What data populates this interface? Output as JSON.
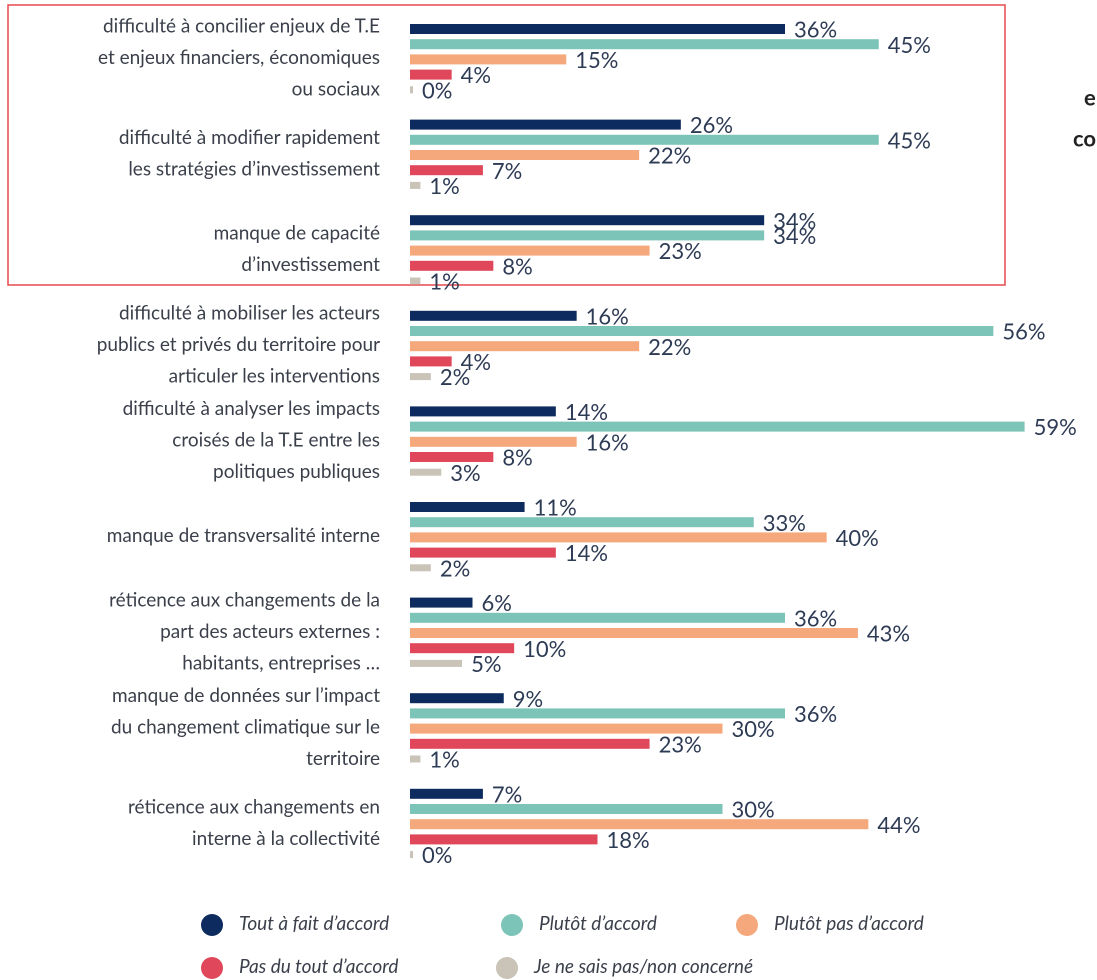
{
  "chart_data": {
    "type": "hbar",
    "categories": [
      [
        "difficulté à concilier enjeux de T.E",
        "et enjeux financiers, économiques",
        "ou sociaux"
      ],
      [
        "difficulté à modifier rapidement",
        "les stratégies d’investissement"
      ],
      [
        "manque de capacité",
        "d’investissement"
      ],
      [
        "difficulté à mobiliser les acteurs",
        "publics et privés du territoire pour",
        "articuler les interventions"
      ],
      [
        "difficulté à analyser les impacts",
        "croisés de la T.E entre les",
        "politiques publiques"
      ],
      [
        "manque de transversalité interne"
      ],
      [
        "réticence aux changements de la",
        "part des acteurs externes :",
        "habitants, entreprises …"
      ],
      [
        "manque de données sur l’impact",
        "du changement climatique sur le",
        "territoire"
      ],
      [
        "réticence aux changements en",
        "interne à la collectivité"
      ]
    ],
    "series": [
      {
        "name": "Tout à fait d’accord",
        "color": "#0d2b5e",
        "values": [
          36,
          26,
          34,
          16,
          14,
          11,
          6,
          9,
          7
        ],
        "value_labels": [
          "36%",
          "26%",
          "34%",
          "16%",
          "14%",
          "11%",
          "6%",
          "9%",
          "7%"
        ]
      },
      {
        "name": "Plutôt d’accord",
        "color": "#7cc4b7",
        "values": [
          45,
          45,
          34,
          56,
          59,
          33,
          36,
          36,
          30
        ],
        "value_labels": [
          "45%",
          "45%",
          "34%",
          "56%",
          "59%",
          "33%",
          "36%",
          "36%",
          "30%"
        ]
      },
      {
        "name": "Plutôt pas d’accord",
        "color": "#f5a87b",
        "values": [
          15,
          22,
          23,
          22,
          16,
          40,
          43,
          30,
          44
        ],
        "value_labels": [
          "15%",
          "22%",
          "23%",
          "22%",
          "16%",
          "40%",
          "43%",
          "30%",
          "44%"
        ]
      },
      {
        "name": "Pas du tout d’accord",
        "color": "#e0475a",
        "values": [
          4,
          7,
          8,
          4,
          8,
          14,
          10,
          23,
          18
        ],
        "value_labels": [
          "4%",
          "7%",
          "8%",
          "4%",
          "8%",
          "14%",
          "10%",
          "23%",
          "18%"
        ]
      },
      {
        "name": "Je ne sais pas/non concerné",
        "color": "#c9c3b8",
        "values": [
          0,
          1,
          1,
          2,
          3,
          2,
          5,
          1,
          0
        ],
        "value_labels": [
          "0%",
          "1%",
          "1%",
          "2%",
          "3%",
          "2%",
          "5%",
          "1%",
          "0%"
        ]
      }
    ],
    "xlim": [
      0,
      60
    ],
    "annotations": [
      "e",
      "co"
    ]
  }
}
